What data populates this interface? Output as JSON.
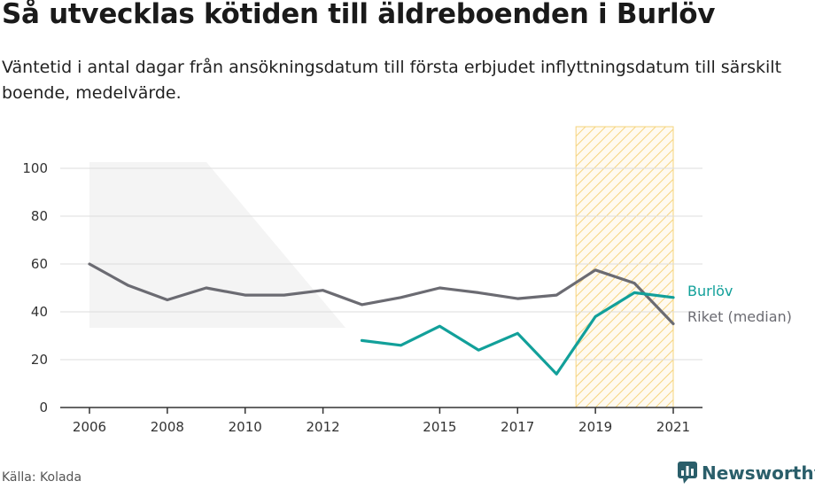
{
  "title": "Så utvecklas kötiden till äldreboenden i Burlöv",
  "subtitle": "Väntetid i antal dagar från ansökningsdatum till första erbjudet inflyttningsdatum till särskilt boende, medelvärde.",
  "source": "Källa: Kolada",
  "brand": {
    "name": "Newsworthy",
    "icon": "newsworthy-logo-icon",
    "color": "#2a5e6a"
  },
  "chart_data": {
    "type": "line",
    "xlim": [
      2005.3,
      2021.7
    ],
    "ylim": [
      0,
      100
    ],
    "yticks": [
      0,
      20,
      40,
      60,
      80,
      100
    ],
    "xticks": [
      2006,
      2008,
      2010,
      2012,
      2015,
      2017,
      2019,
      2021
    ],
    "grid": true,
    "highlight_years": [
      2018.5,
      2021
    ],
    "series": [
      {
        "name": "Burlöv",
        "color": "#12a09a",
        "x": [
          2013,
          2014,
          2015,
          2016,
          2017,
          2018,
          2019,
          2020,
          2021
        ],
        "values": [
          28,
          26,
          34,
          24,
          31,
          14,
          38,
          48,
          46
        ]
      },
      {
        "name": "Riket (median)",
        "color": "#6b6b72",
        "x": [
          2006,
          2007,
          2008,
          2009,
          2010,
          2011,
          2012,
          2013,
          2014,
          2015,
          2016,
          2017,
          2018,
          2019,
          2020,
          2021
        ],
        "values": [
          60,
          51,
          45,
          50,
          47,
          47,
          49,
          43,
          46,
          50,
          48,
          45.5,
          47,
          57.5,
          52,
          35
        ]
      }
    ]
  }
}
